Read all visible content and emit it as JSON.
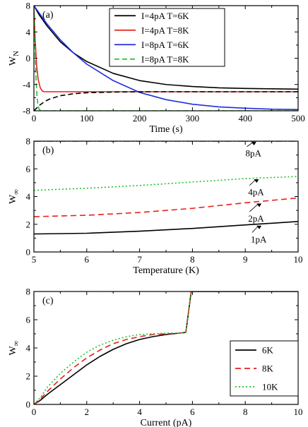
{
  "chart_data": [
    {
      "panel_label": "(a)",
      "type": "line",
      "xlabel": "Time (s)",
      "ylabel": "W",
      "ylabel_sub": "N",
      "xlim": [
        0,
        500
      ],
      "ylim": [
        -8,
        8
      ],
      "xticks": [
        0,
        100,
        200,
        300,
        400,
        500
      ],
      "yticks": [
        -8,
        -4,
        0,
        4,
        8
      ],
      "legend": "top-right",
      "series": [
        {
          "name": "I=4pA    T=6K",
          "color": "#000000",
          "dash": "",
          "x": [
            0,
            10,
            25,
            50,
            75,
            100,
            150,
            200,
            250,
            300,
            350,
            400,
            450,
            500
          ],
          "y": [
            8,
            6.6,
            4.9,
            2.5,
            0.8,
            -0.5,
            -2.3,
            -3.4,
            -4.0,
            -4.3,
            -4.5,
            -4.6,
            -4.65,
            -4.7
          ]
        },
        {
          "name": "I=4pA    T=8K",
          "color": "#e8201a",
          "dash": "",
          "x": [
            0,
            2,
            5,
            8,
            12,
            16,
            20,
            30,
            50,
            100,
            200,
            300,
            400,
            500
          ],
          "y": [
            8,
            3.5,
            -1.0,
            -3.2,
            -4.5,
            -5.0,
            -5.1,
            -5.1,
            -5.1,
            -5.1,
            -5.1,
            -5.1,
            -5.1,
            -5.1
          ]
        },
        {
          "name": "I=8pA    T=6K",
          "color": "#1f2de0",
          "dash": "",
          "x": [
            0,
            25,
            50,
            75,
            100,
            150,
            200,
            250,
            300,
            350,
            400,
            450,
            500
          ],
          "y": [
            8,
            5.2,
            2.8,
            0.8,
            -0.9,
            -3.4,
            -5.2,
            -6.3,
            -7.0,
            -7.4,
            -7.6,
            -7.75,
            -7.8
          ]
        },
        {
          "name": "I=8pA    T=8K",
          "color": "#22c02a",
          "dash": "7,4",
          "x": [
            0,
            2,
            4,
            6,
            8,
            10,
            14,
            20,
            30,
            50,
            100,
            200,
            300,
            400,
            500
          ],
          "y": [
            8,
            2.0,
            -3.0,
            -6.0,
            -7.3,
            -7.8,
            -8.0,
            -8.0,
            -8.0,
            -8.0,
            -8.0,
            -8.0,
            -8.0,
            -8.0,
            -8.0
          ]
        },
        {
          "name": "",
          "color": "#000000",
          "dash": "7,4",
          "legend": false,
          "x": [
            0,
            5,
            10,
            20,
            30,
            50,
            75,
            100,
            150,
            200,
            300,
            400,
            500
          ],
          "y": [
            -8,
            -7.6,
            -7.2,
            -6.6,
            -6.2,
            -5.7,
            -5.4,
            -5.25,
            -5.15,
            -5.1,
            -5.1,
            -5.1,
            -5.1
          ]
        }
      ]
    },
    {
      "panel_label": "(b)",
      "type": "line",
      "xlabel": "Temperature (K)",
      "ylabel": "W",
      "ylabel_sub": "∞",
      "xlim": [
        5,
        10
      ],
      "ylim": [
        0,
        8
      ],
      "xticks": [
        5,
        6,
        7,
        8,
        9,
        10
      ],
      "yticks": [
        0,
        2,
        4,
        6,
        8
      ],
      "series": [
        {
          "name": "8pA",
          "color": "#1f2de0",
          "dash": "10,3,2,3",
          "x": [
            5,
            6,
            7,
            8,
            9,
            10
          ],
          "y": [
            8.0,
            8.0,
            8.0,
            8.0,
            8.0,
            8.0
          ],
          "annotation_at": [
            9.1,
            8.0
          ],
          "label_at": [
            8.95,
            7.3
          ]
        },
        {
          "name": "4pA",
          "color": "#22c02a",
          "dash": "2,3",
          "x": [
            5,
            6,
            7,
            8,
            9,
            10
          ],
          "y": [
            4.45,
            4.6,
            4.8,
            5.05,
            5.3,
            5.45
          ],
          "annotation_at": [
            9.15,
            5.3
          ],
          "label_at": [
            9.0,
            4.5
          ]
        },
        {
          "name": "2pA",
          "color": "#e8201a",
          "dash": "8,5",
          "x": [
            5,
            6,
            7,
            8,
            9,
            10
          ],
          "y": [
            2.55,
            2.65,
            2.85,
            3.15,
            3.55,
            3.9
          ],
          "annotation_at": [
            9.2,
            3.55
          ],
          "label_at": [
            9.0,
            2.6
          ]
        },
        {
          "name": "1pA",
          "color": "#000000",
          "dash": "",
          "x": [
            5,
            6,
            7,
            8,
            9,
            10
          ],
          "y": [
            1.3,
            1.35,
            1.5,
            1.7,
            1.95,
            2.2
          ],
          "annotation_at": [
            9.2,
            1.95
          ],
          "label_at": [
            9.05,
            1.1
          ]
        }
      ]
    },
    {
      "panel_label": "(c)",
      "type": "line",
      "xlabel": "Current (pA)",
      "ylabel": "W",
      "ylabel_sub": "∞",
      "xlim": [
        0,
        10
      ],
      "ylim": [
        0,
        8
      ],
      "xticks": [
        0,
        2,
        4,
        6,
        8,
        10
      ],
      "yticks": [
        0,
        2,
        4,
        6,
        8
      ],
      "legend": "lower-right",
      "series": [
        {
          "name": "6K",
          "color": "#000000",
          "dash": "",
          "x": [
            0,
            0.25,
            0.5,
            1,
            1.5,
            2,
            2.5,
            3,
            3.5,
            4,
            4.5,
            5,
            5.5,
            5.75,
            5.85,
            5.95,
            6.05,
            7,
            8,
            9,
            10
          ],
          "y": [
            0,
            0.3,
            0.7,
            1.4,
            2.1,
            2.8,
            3.4,
            3.9,
            4.3,
            4.6,
            4.8,
            4.95,
            5.05,
            5.1,
            6.5,
            7.95,
            8.0,
            8.0,
            8.0,
            8.0,
            8.0
          ]
        },
        {
          "name": "8K",
          "color": "#e8201a",
          "dash": "8,5",
          "x": [
            0,
            0.25,
            0.5,
            1,
            1.5,
            2,
            2.5,
            3,
            3.5,
            4,
            4.5,
            5,
            5.5,
            5.75,
            5.85,
            5.95,
            6.05,
            7,
            8,
            9,
            10
          ],
          "y": [
            0,
            0.4,
            0.9,
            1.8,
            2.6,
            3.3,
            3.85,
            4.3,
            4.6,
            4.8,
            4.95,
            5.0,
            5.05,
            5.1,
            6.5,
            7.95,
            8.0,
            8.0,
            8.0,
            8.0,
            8.0
          ]
        },
        {
          "name": "10K",
          "color": "#22c02a",
          "dash": "2,3",
          "x": [
            0,
            0.25,
            0.5,
            1,
            1.5,
            2,
            2.5,
            3,
            3.5,
            4,
            4.5,
            5,
            5.5,
            5.75,
            5.85,
            5.95,
            6.05,
            7,
            8,
            9,
            10
          ],
          "y": [
            0,
            0.5,
            1.2,
            2.2,
            3.0,
            3.7,
            4.2,
            4.55,
            4.8,
            4.95,
            5.0,
            5.05,
            5.05,
            5.1,
            6.5,
            7.95,
            8.0,
            8.0,
            8.0,
            8.0,
            8.0
          ]
        }
      ]
    }
  ]
}
